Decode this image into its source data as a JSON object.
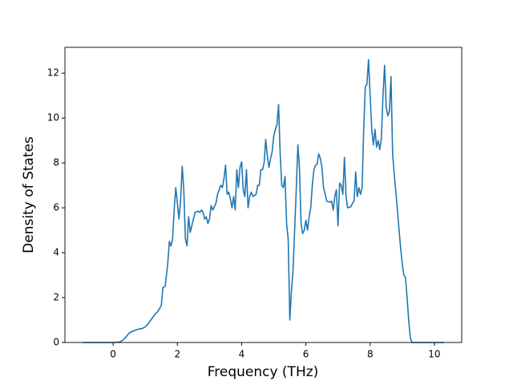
{
  "chart_data": {
    "type": "line",
    "xlabel": "Frequency (THz)",
    "ylabel": "Density of States",
    "color": "#1f77b4",
    "x": [
      -0.95,
      -0.5,
      0,
      0.2,
      0.3,
      0.4,
      0.5,
      0.6,
      0.7,
      0.8,
      0.9,
      1.0,
      1.1,
      1.2,
      1.3,
      1.4,
      1.5,
      1.55,
      1.62,
      1.7,
      1.75,
      1.8,
      1.85,
      1.9,
      1.95,
      2.0,
      2.05,
      2.1,
      2.15,
      2.2,
      2.25,
      2.3,
      2.35,
      2.4,
      2.5,
      2.55,
      2.65,
      2.7,
      2.75,
      2.8,
      2.85,
      2.9,
      2.95,
      3.0,
      3.05,
      3.1,
      3.2,
      3.25,
      3.35,
      3.4,
      3.45,
      3.5,
      3.55,
      3.6,
      3.65,
      3.7,
      3.75,
      3.8,
      3.85,
      3.9,
      3.95,
      4.0,
      4.05,
      4.1,
      4.15,
      4.2,
      4.25,
      4.3,
      4.35,
      4.45,
      4.5,
      4.55,
      4.6,
      4.65,
      4.7,
      4.75,
      4.8,
      4.85,
      4.9,
      4.95,
      5.0,
      5.05,
      5.1,
      5.15,
      5.2,
      5.25,
      5.3,
      5.35,
      5.4,
      5.45,
      5.5,
      5.55,
      5.6,
      5.65,
      5.7,
      5.75,
      5.8,
      5.85,
      5.9,
      5.95,
      6.0,
      6.05,
      6.1,
      6.15,
      6.2,
      6.25,
      6.3,
      6.35,
      6.4,
      6.45,
      6.5,
      6.55,
      6.6,
      6.65,
      6.75,
      6.8,
      6.85,
      6.9,
      6.95,
      7.0,
      7.05,
      7.1,
      7.15,
      7.2,
      7.25,
      7.3,
      7.4,
      7.45,
      7.5,
      7.55,
      7.6,
      7.65,
      7.7,
      7.75,
      7.8,
      7.85,
      7.9,
      7.95,
      8.0,
      8.05,
      8.1,
      8.15,
      8.2,
      8.25,
      8.3,
      8.35,
      8.4,
      8.45,
      8.5,
      8.55,
      8.6,
      8.65,
      8.7,
      8.75,
      8.8,
      8.85,
      8.9,
      8.95,
      9.0,
      9.05,
      9.1,
      9.15,
      9.2,
      9.25,
      9.3,
      9.5,
      10.3
    ],
    "values": [
      0,
      0,
      0,
      0.02,
      0.1,
      0.25,
      0.42,
      0.5,
      0.55,
      0.6,
      0.62,
      0.7,
      0.85,
      1.05,
      1.25,
      1.4,
      1.65,
      2.45,
      2.5,
      3.5,
      4.5,
      4.3,
      4.6,
      5.9,
      6.9,
      6.2,
      5.5,
      6.3,
      7.85,
      6.8,
      4.6,
      4.3,
      5.6,
      4.9,
      5.5,
      5.8,
      5.85,
      5.8,
      5.9,
      5.8,
      5.5,
      5.6,
      5.3,
      5.5,
      6.1,
      5.9,
      6.2,
      6.6,
      7.0,
      6.9,
      7.3,
      7.9,
      6.6,
      6.7,
      6.4,
      6.0,
      6.5,
      5.9,
      7.7,
      6.9,
      7.8,
      8.05,
      6.8,
      6.5,
      7.7,
      6.0,
      6.5,
      6.7,
      6.5,
      6.6,
      7.0,
      7.0,
      7.7,
      7.7,
      8.0,
      9.05,
      8.3,
      7.8,
      8.2,
      8.5,
      9.2,
      9.5,
      9.7,
      10.6,
      8.4,
      7.0,
      6.9,
      7.4,
      5.3,
      4.6,
      1.0,
      2.3,
      3.2,
      5.0,
      6.8,
      8.8,
      7.8,
      5.3,
      4.85,
      5.0,
      5.45,
      5.0,
      5.6,
      6.0,
      7.0,
      7.7,
      7.9,
      7.95,
      8.4,
      8.2,
      7.8,
      6.9,
      6.6,
      6.3,
      6.25,
      6.3,
      5.9,
      6.5,
      6.8,
      5.2,
      7.1,
      7.0,
      6.6,
      8.25,
      6.5,
      6.0,
      6.05,
      6.2,
      6.3,
      7.6,
      6.5,
      6.9,
      6.6,
      6.9,
      9.5,
      11.4,
      11.5,
      12.6,
      11.0,
      9.5,
      8.8,
      9.5,
      8.7,
      9.0,
      8.6,
      9.1,
      11.0,
      12.35,
      10.5,
      10.1,
      10.3,
      11.85,
      8.4,
      7.5,
      6.7,
      5.9,
      5.0,
      4.2,
      3.5,
      3.0,
      2.9,
      2.0,
      1.0,
      0.2,
      0,
      0,
      0
    ],
    "xlim": [
      -1.5,
      10.85
    ],
    "ylim": [
      0,
      13.15
    ],
    "xticks": [
      0,
      2,
      4,
      6,
      8,
      10
    ],
    "yticks": [
      0,
      2,
      4,
      6,
      8,
      10,
      12
    ]
  }
}
